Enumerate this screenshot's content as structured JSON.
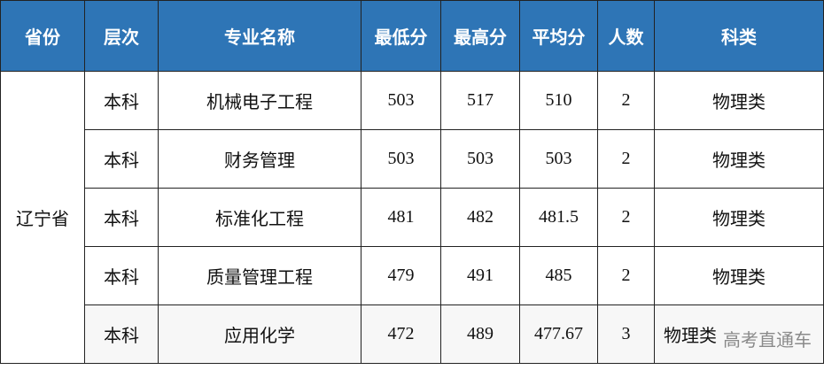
{
  "headers": [
    "省份",
    "层次",
    "专业名称",
    "最低分",
    "最高分",
    "平均分",
    "人数",
    "科类"
  ],
  "province": "辽宁省",
  "rows": [
    [
      "本科",
      "机械电子工程",
      "503",
      "517",
      "510",
      "2",
      "物理类"
    ],
    [
      "本科",
      "财务管理",
      "503",
      "503",
      "503",
      "2",
      "物理类"
    ],
    [
      "本科",
      "标准化工程",
      "481",
      "482",
      "481.5",
      "2",
      "物理类"
    ],
    [
      "本科",
      "质量管理工程",
      "479",
      "491",
      "485",
      "2",
      "物理类"
    ],
    [
      "本科",
      "应用化学",
      "472",
      "489",
      "477.67",
      "3",
      "物理类"
    ]
  ],
  "watermark": "高考直通车",
  "colors": {
    "header_bg": "#2e75b6",
    "header_text": "#ffffff"
  }
}
